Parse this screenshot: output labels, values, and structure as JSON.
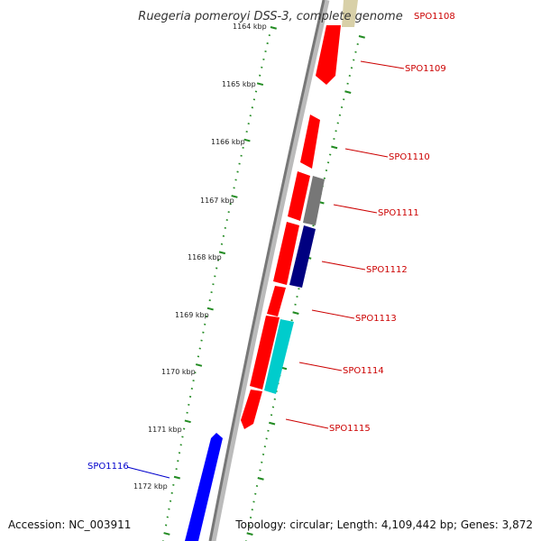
{
  "title": "Ruegeria pomeroyi DSS-3, complete genome",
  "accession": "Accession: NC_003911",
  "topology": "Topology: circular; Length: 4,109,442 bp; Genes: 3,872",
  "colors": {
    "backbone": "#888888",
    "tick": "#228b22",
    "forward_gene": "#ff0000",
    "label_red": "#cc0000",
    "label_blue": "#0000cc"
  },
  "kbp_ticks": [
    "1164 kbp",
    "1165 kbp",
    "1166 kbp",
    "1167 kbp",
    "1168 kbp",
    "1169 kbp",
    "1170 kbp",
    "1171 kbp",
    "1172 kbp"
  ],
  "genes": [
    {
      "label": "SPO1108",
      "label_color": "#cc0000",
      "fill": "#d8d0a8"
    },
    {
      "label": "SPO1109",
      "label_color": "#cc0000",
      "fill": "#ff0000"
    },
    {
      "label": "SPO1110",
      "label_color": "#cc0000",
      "fill": "#ff0000"
    },
    {
      "label": "SPO1111",
      "label_color": "#cc0000",
      "fill": "#777777"
    },
    {
      "label": "SPO1112",
      "label_color": "#cc0000",
      "fill": "#000080"
    },
    {
      "label": "SPO1113",
      "label_color": "#cc0000",
      "fill": "#ff0000"
    },
    {
      "label": "SPO1114",
      "label_color": "#cc0000",
      "fill": "#00cccc"
    },
    {
      "label": "SPO1115",
      "label_color": "#cc0000",
      "fill": "#ff0000"
    },
    {
      "label": "SPO1116",
      "label_color": "#0000cc",
      "fill": "#0000ff"
    }
  ]
}
